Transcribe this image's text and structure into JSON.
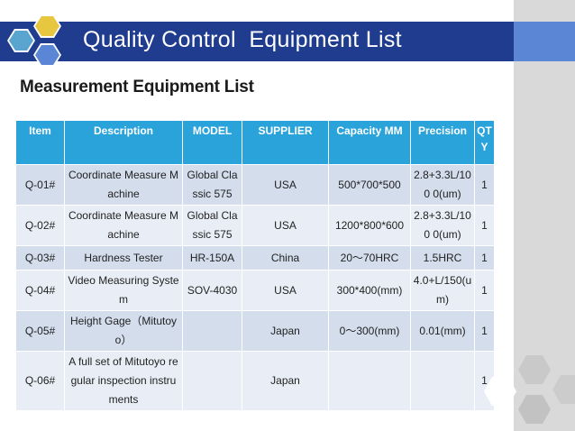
{
  "slide": {
    "title": "Quality Control  Equipment List",
    "subtitle": "Measurement Equipment List",
    "colors": {
      "title_bar": "#1f3c8f",
      "header_bg": "#2aa3db",
      "row_odd": "#d3ddec",
      "row_even": "#e9eef6",
      "side_strip": "#d9d9d9"
    },
    "logo_icon": "hexagon-cluster-icon",
    "decor_icon": "hexagon-pattern-icon"
  },
  "table": {
    "headers": [
      "Item",
      "Description",
      "MODEL",
      "SUPPLIER",
      "Capacity MM",
      "Precision",
      "QTY"
    ],
    "rows": [
      [
        "Q-01#",
        "Coordinate Measure Machine",
        "Global Classic 575",
        "USA",
        "500*700*500",
        "2.8+3.3L/100 0(um)",
        "1"
      ],
      [
        "Q-02#",
        "Coordinate Measure Machine",
        "Global Classic 575",
        "USA",
        "1200*800*600",
        "2.8+3.3L/100 0(um)",
        "1"
      ],
      [
        "Q-03#",
        "Hardness Tester",
        "HR-150A",
        "China",
        "20～70HRC",
        "1.5HRC",
        "1"
      ],
      [
        "Q-04#",
        "Video Measuring System",
        "SOV-4030",
        "USA",
        "300*400(mm)",
        "4.0+L/150(um)",
        "1"
      ],
      [
        "Q-05#",
        "Height Gage（Mitutoyo）",
        "",
        "Japan",
        "0～300(mm)",
        "0.01(mm)",
        "1"
      ],
      [
        "Q-06#",
        "A full set of Mitutoyo regular inspection instruments",
        "",
        "Japan",
        "",
        "",
        "1"
      ]
    ]
  }
}
